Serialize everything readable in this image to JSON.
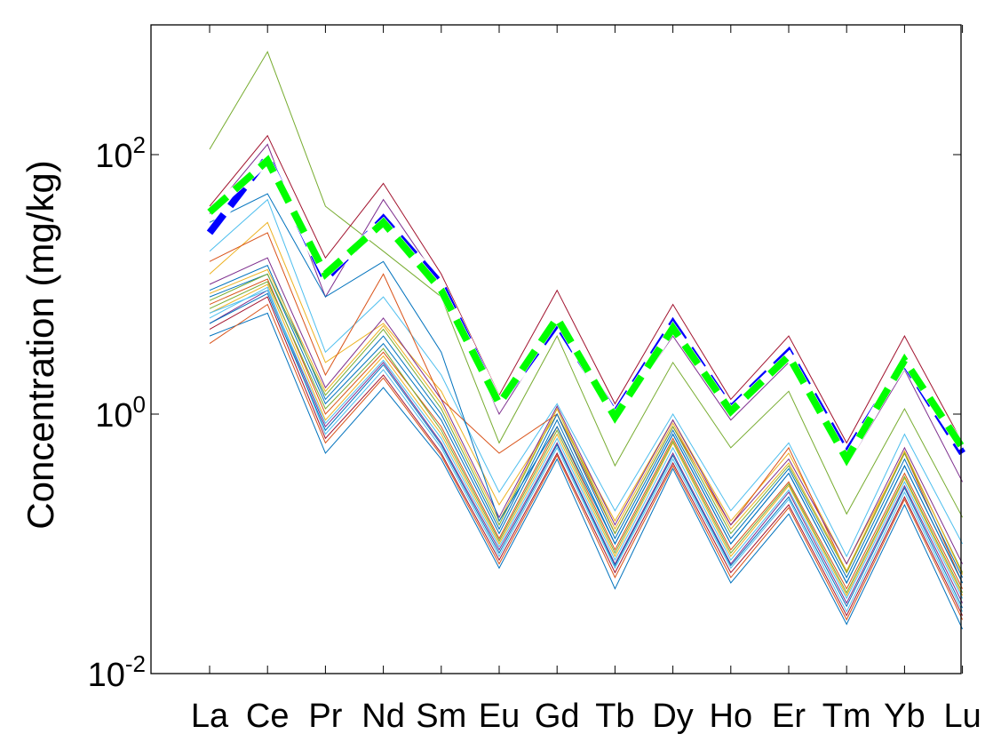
{
  "chart_data": {
    "type": "line",
    "title": "",
    "xlabel": "",
    "ylabel": "Concentration (mg/kg)",
    "yscale": "log",
    "ylim": [
      0.01,
      1000
    ],
    "categories": [
      "La",
      "Ce",
      "Pr",
      "Nd",
      "Sm",
      "Eu",
      "Gd",
      "Tb",
      "Dy",
      "Ho",
      "Er",
      "Tm",
      "Yb",
      "Lu"
    ],
    "y_ticks": [
      {
        "base": "10",
        "exp": "-2",
        "value": 0.01
      },
      {
        "base": "10",
        "exp": "0",
        "value": 1
      },
      {
        "base": "10",
        "exp": "2",
        "value": 100
      }
    ],
    "grid": false,
    "legend": "none",
    "series": [
      {
        "values": [
          25,
          95,
          11,
          32,
          10,
          1.2,
          5,
          1.0,
          5,
          1.1,
          3,
          0.5,
          2.5,
          0.5
        ],
        "color": "#0000ff",
        "style": "dashed-thick"
      },
      {
        "values": [
          36,
          90,
          12,
          30,
          9,
          1.2,
          5.5,
          0.95,
          4.6,
          1.05,
          2.8,
          0.45,
          2.6,
          0.55
        ],
        "color": "#00ff00",
        "style": "dashed-thick"
      },
      {
        "values": [
          110,
          620,
          40,
          18,
          8,
          0.6,
          4.0,
          0.4,
          2.5,
          0.55,
          1.5,
          0.17,
          1.1,
          0.16
        ],
        "color": "#77ac30"
      },
      {
        "values": [
          40,
          140,
          16,
          60,
          12,
          1.4,
          9,
          1.2,
          7,
          1.3,
          4,
          0.6,
          4,
          0.6
        ],
        "color": "#a2142f"
      },
      {
        "values": [
          35,
          120,
          8,
          45,
          10,
          1.0,
          5,
          0.9,
          4,
          0.9,
          2.5,
          0.4,
          2.2,
          0.3
        ],
        "color": "#7e2f8e"
      },
      {
        "values": [
          18,
          45,
          3,
          8,
          2,
          0.25,
          1.2,
          0.18,
          1.0,
          0.18,
          0.6,
          0.08,
          0.7,
          0.1
        ],
        "color": "#4dbeee"
      },
      {
        "values": [
          12,
          30,
          2.5,
          5,
          1.5,
          0.2,
          1.0,
          0.15,
          0.9,
          0.15,
          0.5,
          0.07,
          0.5,
          0.06
        ],
        "color": "#edb120"
      },
      {
        "values": [
          15,
          25,
          2.0,
          12,
          1.3,
          0.5,
          1.0,
          0.12,
          0.8,
          0.14,
          0.55,
          0.06,
          0.5,
          0.05
        ],
        "color": "#d95319"
      },
      {
        "values": [
          8,
          12,
          1.2,
          3.5,
          0.9,
          0.12,
          0.9,
          0.1,
          0.7,
          0.1,
          0.35,
          0.05,
          0.4,
          0.05
        ],
        "color": "#0072bd"
      },
      {
        "values": [
          7,
          11,
          1.0,
          3.0,
          0.8,
          0.11,
          0.8,
          0.09,
          0.65,
          0.09,
          0.3,
          0.045,
          0.35,
          0.045
        ],
        "color": "#d95319"
      },
      {
        "values": [
          6,
          10,
          0.9,
          2.8,
          0.7,
          0.1,
          0.7,
          0.08,
          0.6,
          0.08,
          0.28,
          0.04,
          0.32,
          0.04
        ],
        "color": "#edb120"
      },
      {
        "values": [
          5,
          9,
          0.8,
          2.5,
          0.6,
          0.09,
          0.6,
          0.07,
          0.5,
          0.07,
          0.25,
          0.035,
          0.28,
          0.035
        ],
        "color": "#7e2f8e"
      },
      {
        "values": [
          6.5,
          10.5,
          1.1,
          3.2,
          0.75,
          0.105,
          0.75,
          0.085,
          0.62,
          0.085,
          0.29,
          0.042,
          0.33,
          0.042
        ],
        "color": "#77ac30"
      },
      {
        "values": [
          5.5,
          9.5,
          0.7,
          2.2,
          0.55,
          0.08,
          0.55,
          0.065,
          0.45,
          0.065,
          0.22,
          0.03,
          0.25,
          0.03
        ],
        "color": "#4dbeee"
      },
      {
        "values": [
          4.5,
          8,
          0.65,
          2.0,
          0.5,
          0.075,
          0.5,
          0.06,
          0.42,
          0.06,
          0.2,
          0.028,
          0.23,
          0.028
        ],
        "color": "#a2142f"
      },
      {
        "values": [
          9,
          14,
          1.3,
          4.0,
          1.0,
          0.13,
          1.0,
          0.11,
          0.75,
          0.11,
          0.38,
          0.055,
          0.45,
          0.055
        ],
        "color": "#0072bd"
      },
      {
        "values": [
          4,
          6,
          0.5,
          1.6,
          0.45,
          0.065,
          0.45,
          0.045,
          0.38,
          0.05,
          0.17,
          0.024,
          0.2,
          0.022
        ],
        "color": "#0072bd"
      },
      {
        "values": [
          3.5,
          7,
          0.6,
          1.9,
          0.48,
          0.07,
          0.48,
          0.055,
          0.4,
          0.055,
          0.19,
          0.026,
          0.22,
          0.026
        ],
        "color": "#d95319"
      },
      {
        "values": [
          7.5,
          12,
          1.4,
          4.5,
          1.1,
          0.14,
          1.1,
          0.12,
          0.8,
          0.12,
          0.4,
          0.06,
          0.5,
          0.06
        ],
        "color": "#77ac30"
      },
      {
        "values": [
          8.5,
          13,
          1.5,
          4.8,
          1.2,
          0.15,
          1.1,
          0.13,
          0.85,
          0.13,
          0.42,
          0.062,
          0.52,
          0.058
        ],
        "color": "#edb120"
      },
      {
        "values": [
          10,
          16,
          1.6,
          5.5,
          1.3,
          0.16,
          1.15,
          0.14,
          0.9,
          0.14,
          0.45,
          0.07,
          0.55,
          0.07
        ],
        "color": "#7e2f8e"
      },
      {
        "values": [
          6,
          9,
          0.85,
          2.6,
          0.65,
          0.095,
          0.65,
          0.075,
          0.55,
          0.075,
          0.26,
          0.038,
          0.3,
          0.038
        ],
        "color": "#4dbeee"
      },
      {
        "values": [
          5,
          8.5,
          0.75,
          2.4,
          0.58,
          0.085,
          0.58,
          0.068,
          0.48,
          0.068,
          0.23,
          0.033,
          0.27,
          0.032
        ],
        "color": "#0072bd"
      },
      {
        "values": [
          30,
          50,
          8,
          15,
          3,
          0.15,
          0.8,
          0.1,
          0.7,
          0.1,
          0.35,
          0.05,
          0.4,
          0.05
        ],
        "color": "#0072bd"
      }
    ]
  }
}
